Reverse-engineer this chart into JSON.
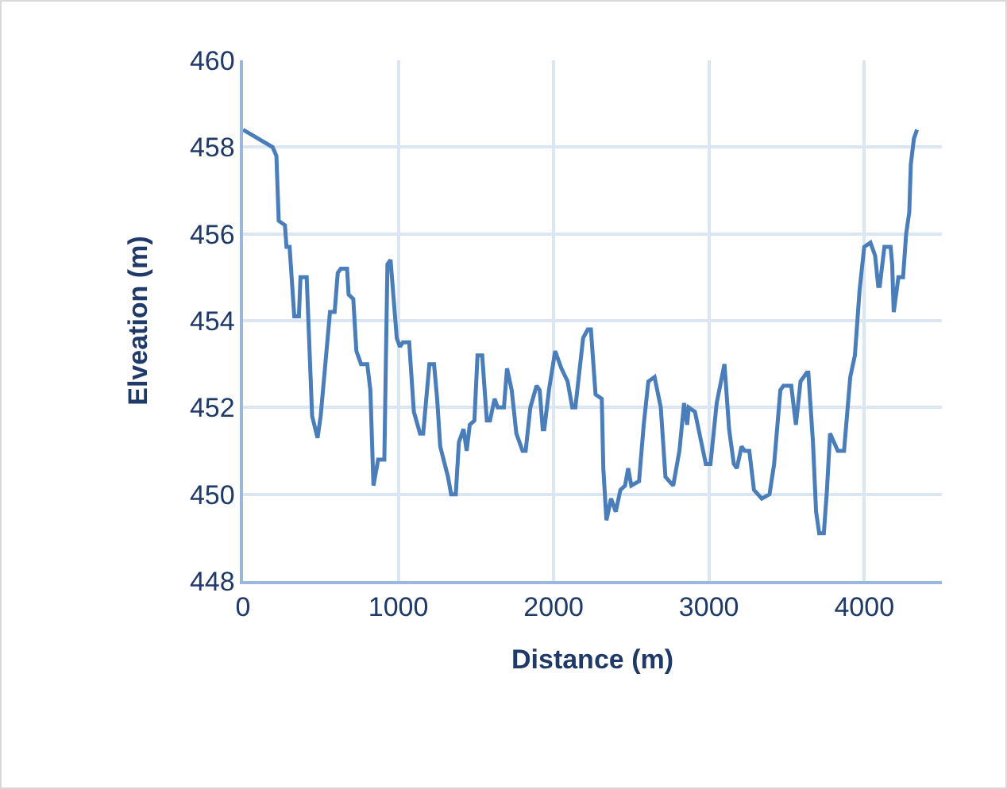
{
  "chart_data": {
    "type": "line",
    "xlabel": "Distance (m)",
    "ylabel": "Elveation (m)",
    "xlim": [
      0,
      4500
    ],
    "xticks": [
      0,
      1000,
      2000,
      3000,
      4000
    ],
    "ylim": [
      448,
      460
    ],
    "yticks": [
      448,
      450,
      452,
      454,
      456,
      458,
      460
    ],
    "grid": true,
    "marker": "none",
    "line_style": "solid",
    "series": [
      {
        "color": "#4a7ebb",
        "x": [
          0,
          190,
          215,
          230,
          270,
          280,
          300,
          330,
          360,
          370,
          410,
          445,
          480,
          500,
          560,
          590,
          610,
          630,
          670,
          680,
          710,
          730,
          760,
          800,
          820,
          840,
          870,
          910,
          920,
          930,
          950,
          990,
          1010,
          1030,
          1070,
          1100,
          1140,
          1160,
          1200,
          1230,
          1250,
          1270,
          1320,
          1340,
          1370,
          1390,
          1420,
          1440,
          1460,
          1490,
          1510,
          1540,
          1570,
          1590,
          1620,
          1640,
          1680,
          1700,
          1730,
          1760,
          1800,
          1820,
          1850,
          1890,
          1910,
          1930,
          1940,
          1970,
          2010,
          2050,
          2090,
          2120,
          2140,
          2190,
          2220,
          2240,
          2270,
          2310,
          2320,
          2340,
          2370,
          2400,
          2430,
          2460,
          2480,
          2500,
          2550,
          2580,
          2610,
          2650,
          2690,
          2720,
          2770,
          2810,
          2840,
          2860,
          2870,
          2910,
          2980,
          3010,
          3050,
          3100,
          3130,
          3160,
          3180,
          3210,
          3230,
          3260,
          3290,
          3340,
          3390,
          3420,
          3460,
          3480,
          3530,
          3560,
          3590,
          3630,
          3640,
          3670,
          3690,
          3710,
          3740,
          3760,
          3780,
          3830,
          3870,
          3910,
          3940,
          3970,
          4000,
          4040,
          4070,
          4090,
          4100,
          4130,
          4170,
          4180,
          4190,
          4220,
          4250,
          4270,
          4290,
          4300,
          4320,
          4340
        ],
        "values": [
          458.4,
          458.0,
          457.8,
          456.3,
          456.2,
          455.7,
          455.7,
          454.1,
          454.1,
          455.0,
          455.0,
          451.8,
          451.3,
          451.8,
          454.2,
          454.2,
          455.1,
          455.2,
          455.2,
          454.6,
          454.5,
          453.3,
          453.0,
          453.0,
          452.4,
          450.2,
          450.8,
          450.8,
          453.1,
          455.3,
          455.4,
          453.6,
          453.4,
          453.5,
          453.5,
          451.9,
          451.4,
          451.4,
          453.0,
          453.0,
          452.2,
          451.1,
          450.4,
          450.0,
          450.0,
          451.2,
          451.5,
          451.0,
          451.6,
          451.7,
          453.2,
          453.2,
          451.7,
          451.7,
          452.2,
          452.0,
          452.0,
          452.9,
          452.4,
          451.4,
          451.0,
          451.0,
          452.0,
          452.5,
          452.4,
          451.5,
          451.5,
          452.4,
          453.3,
          452.9,
          452.6,
          452.0,
          452.0,
          453.6,
          453.8,
          453.8,
          452.3,
          452.2,
          450.6,
          449.4,
          449.9,
          449.6,
          450.1,
          450.2,
          450.6,
          450.2,
          450.3,
          451.6,
          452.6,
          452.7,
          452.0,
          450.4,
          450.2,
          451.0,
          452.1,
          451.6,
          452.0,
          451.9,
          450.7,
          450.7,
          452.1,
          453.0,
          451.5,
          450.7,
          450.6,
          451.1,
          451.0,
          451.0,
          450.1,
          449.9,
          450.0,
          450.7,
          452.4,
          452.5,
          452.5,
          451.6,
          452.6,
          452.8,
          452.8,
          451.2,
          449.6,
          449.1,
          449.1,
          450.1,
          451.4,
          451.0,
          451.0,
          452.7,
          453.2,
          454.7,
          455.7,
          455.8,
          455.5,
          454.8,
          454.8,
          455.7,
          455.7,
          455.3,
          454.2,
          455.0,
          455.0,
          456.0,
          456.5,
          457.6,
          458.2,
          458.4
        ]
      }
    ]
  }
}
